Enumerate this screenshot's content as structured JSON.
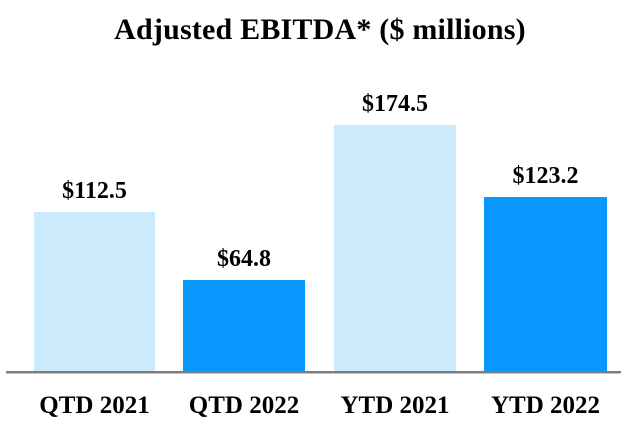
{
  "chart_data": {
    "type": "bar",
    "title": "Adjusted EBITDA* ($ millions)",
    "categories": [
      "QTD 2021",
      "QTD 2022",
      "YTD 2021",
      "YTD 2022"
    ],
    "values": [
      112.5,
      64.8,
      174.5,
      123.2
    ],
    "value_labels": [
      "$112.5",
      "$64.8",
      "$174.5",
      "$123.2"
    ],
    "xlabel": "",
    "ylabel": "",
    "ylim": [
      0,
      180
    ],
    "grid": false,
    "legend": false,
    "bar_colors": [
      "#CBEBFC",
      "#0997FD",
      "#CBEBFC",
      "#0997FD"
    ],
    "color_meaning": {
      "2021_bars": "#CBEBFC",
      "2022_bars": "#0997FD"
    },
    "axis_line_color": "#7D7D7D",
    "text_color": "#000000",
    "background_color": "#FFFFFF"
  }
}
